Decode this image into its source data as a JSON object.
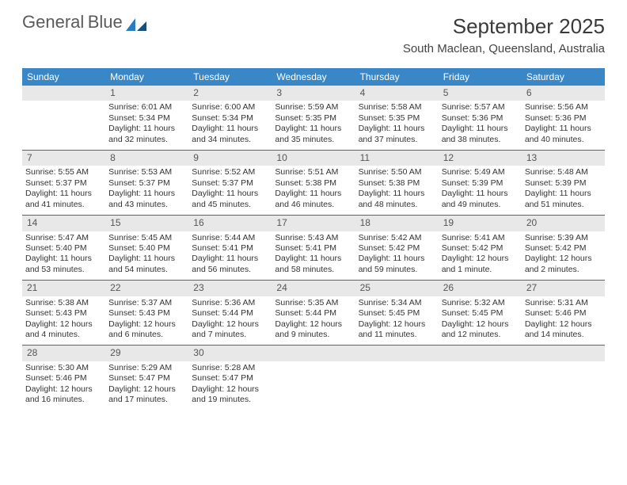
{
  "logo": {
    "text1": "General",
    "text2": "Blue",
    "color_gray": "#5a5a5a",
    "color_blue": "#2b7bbf"
  },
  "title": {
    "month": "September 2025",
    "location": "South Maclean, Queensland, Australia"
  },
  "colors": {
    "header_bg": "#3a87c7",
    "daynum_bg": "#e8e8e8",
    "week_border": "#2f6fa3",
    "text": "#333333"
  },
  "dow": [
    "Sunday",
    "Monday",
    "Tuesday",
    "Wednesday",
    "Thursday",
    "Friday",
    "Saturday"
  ],
  "weeks": [
    [
      {
        "n": "",
        "sr": "",
        "ss": "",
        "dl": ""
      },
      {
        "n": "1",
        "sr": "Sunrise: 6:01 AM",
        "ss": "Sunset: 5:34 PM",
        "dl": "Daylight: 11 hours and 32 minutes."
      },
      {
        "n": "2",
        "sr": "Sunrise: 6:00 AM",
        "ss": "Sunset: 5:34 PM",
        "dl": "Daylight: 11 hours and 34 minutes."
      },
      {
        "n": "3",
        "sr": "Sunrise: 5:59 AM",
        "ss": "Sunset: 5:35 PM",
        "dl": "Daylight: 11 hours and 35 minutes."
      },
      {
        "n": "4",
        "sr": "Sunrise: 5:58 AM",
        "ss": "Sunset: 5:35 PM",
        "dl": "Daylight: 11 hours and 37 minutes."
      },
      {
        "n": "5",
        "sr": "Sunrise: 5:57 AM",
        "ss": "Sunset: 5:36 PM",
        "dl": "Daylight: 11 hours and 38 minutes."
      },
      {
        "n": "6",
        "sr": "Sunrise: 5:56 AM",
        "ss": "Sunset: 5:36 PM",
        "dl": "Daylight: 11 hours and 40 minutes."
      }
    ],
    [
      {
        "n": "7",
        "sr": "Sunrise: 5:55 AM",
        "ss": "Sunset: 5:37 PM",
        "dl": "Daylight: 11 hours and 41 minutes."
      },
      {
        "n": "8",
        "sr": "Sunrise: 5:53 AM",
        "ss": "Sunset: 5:37 PM",
        "dl": "Daylight: 11 hours and 43 minutes."
      },
      {
        "n": "9",
        "sr": "Sunrise: 5:52 AM",
        "ss": "Sunset: 5:37 PM",
        "dl": "Daylight: 11 hours and 45 minutes."
      },
      {
        "n": "10",
        "sr": "Sunrise: 5:51 AM",
        "ss": "Sunset: 5:38 PM",
        "dl": "Daylight: 11 hours and 46 minutes."
      },
      {
        "n": "11",
        "sr": "Sunrise: 5:50 AM",
        "ss": "Sunset: 5:38 PM",
        "dl": "Daylight: 11 hours and 48 minutes."
      },
      {
        "n": "12",
        "sr": "Sunrise: 5:49 AM",
        "ss": "Sunset: 5:39 PM",
        "dl": "Daylight: 11 hours and 49 minutes."
      },
      {
        "n": "13",
        "sr": "Sunrise: 5:48 AM",
        "ss": "Sunset: 5:39 PM",
        "dl": "Daylight: 11 hours and 51 minutes."
      }
    ],
    [
      {
        "n": "14",
        "sr": "Sunrise: 5:47 AM",
        "ss": "Sunset: 5:40 PM",
        "dl": "Daylight: 11 hours and 53 minutes."
      },
      {
        "n": "15",
        "sr": "Sunrise: 5:45 AM",
        "ss": "Sunset: 5:40 PM",
        "dl": "Daylight: 11 hours and 54 minutes."
      },
      {
        "n": "16",
        "sr": "Sunrise: 5:44 AM",
        "ss": "Sunset: 5:41 PM",
        "dl": "Daylight: 11 hours and 56 minutes."
      },
      {
        "n": "17",
        "sr": "Sunrise: 5:43 AM",
        "ss": "Sunset: 5:41 PM",
        "dl": "Daylight: 11 hours and 58 minutes."
      },
      {
        "n": "18",
        "sr": "Sunrise: 5:42 AM",
        "ss": "Sunset: 5:42 PM",
        "dl": "Daylight: 11 hours and 59 minutes."
      },
      {
        "n": "19",
        "sr": "Sunrise: 5:41 AM",
        "ss": "Sunset: 5:42 PM",
        "dl": "Daylight: 12 hours and 1 minute."
      },
      {
        "n": "20",
        "sr": "Sunrise: 5:39 AM",
        "ss": "Sunset: 5:42 PM",
        "dl": "Daylight: 12 hours and 2 minutes."
      }
    ],
    [
      {
        "n": "21",
        "sr": "Sunrise: 5:38 AM",
        "ss": "Sunset: 5:43 PM",
        "dl": "Daylight: 12 hours and 4 minutes."
      },
      {
        "n": "22",
        "sr": "Sunrise: 5:37 AM",
        "ss": "Sunset: 5:43 PM",
        "dl": "Daylight: 12 hours and 6 minutes."
      },
      {
        "n": "23",
        "sr": "Sunrise: 5:36 AM",
        "ss": "Sunset: 5:44 PM",
        "dl": "Daylight: 12 hours and 7 minutes."
      },
      {
        "n": "24",
        "sr": "Sunrise: 5:35 AM",
        "ss": "Sunset: 5:44 PM",
        "dl": "Daylight: 12 hours and 9 minutes."
      },
      {
        "n": "25",
        "sr": "Sunrise: 5:34 AM",
        "ss": "Sunset: 5:45 PM",
        "dl": "Daylight: 12 hours and 11 minutes."
      },
      {
        "n": "26",
        "sr": "Sunrise: 5:32 AM",
        "ss": "Sunset: 5:45 PM",
        "dl": "Daylight: 12 hours and 12 minutes."
      },
      {
        "n": "27",
        "sr": "Sunrise: 5:31 AM",
        "ss": "Sunset: 5:46 PM",
        "dl": "Daylight: 12 hours and 14 minutes."
      }
    ],
    [
      {
        "n": "28",
        "sr": "Sunrise: 5:30 AM",
        "ss": "Sunset: 5:46 PM",
        "dl": "Daylight: 12 hours and 16 minutes."
      },
      {
        "n": "29",
        "sr": "Sunrise: 5:29 AM",
        "ss": "Sunset: 5:47 PM",
        "dl": "Daylight: 12 hours and 17 minutes."
      },
      {
        "n": "30",
        "sr": "Sunrise: 5:28 AM",
        "ss": "Sunset: 5:47 PM",
        "dl": "Daylight: 12 hours and 19 minutes."
      },
      {
        "n": "",
        "sr": "",
        "ss": "",
        "dl": ""
      },
      {
        "n": "",
        "sr": "",
        "ss": "",
        "dl": ""
      },
      {
        "n": "",
        "sr": "",
        "ss": "",
        "dl": ""
      },
      {
        "n": "",
        "sr": "",
        "ss": "",
        "dl": ""
      }
    ]
  ]
}
